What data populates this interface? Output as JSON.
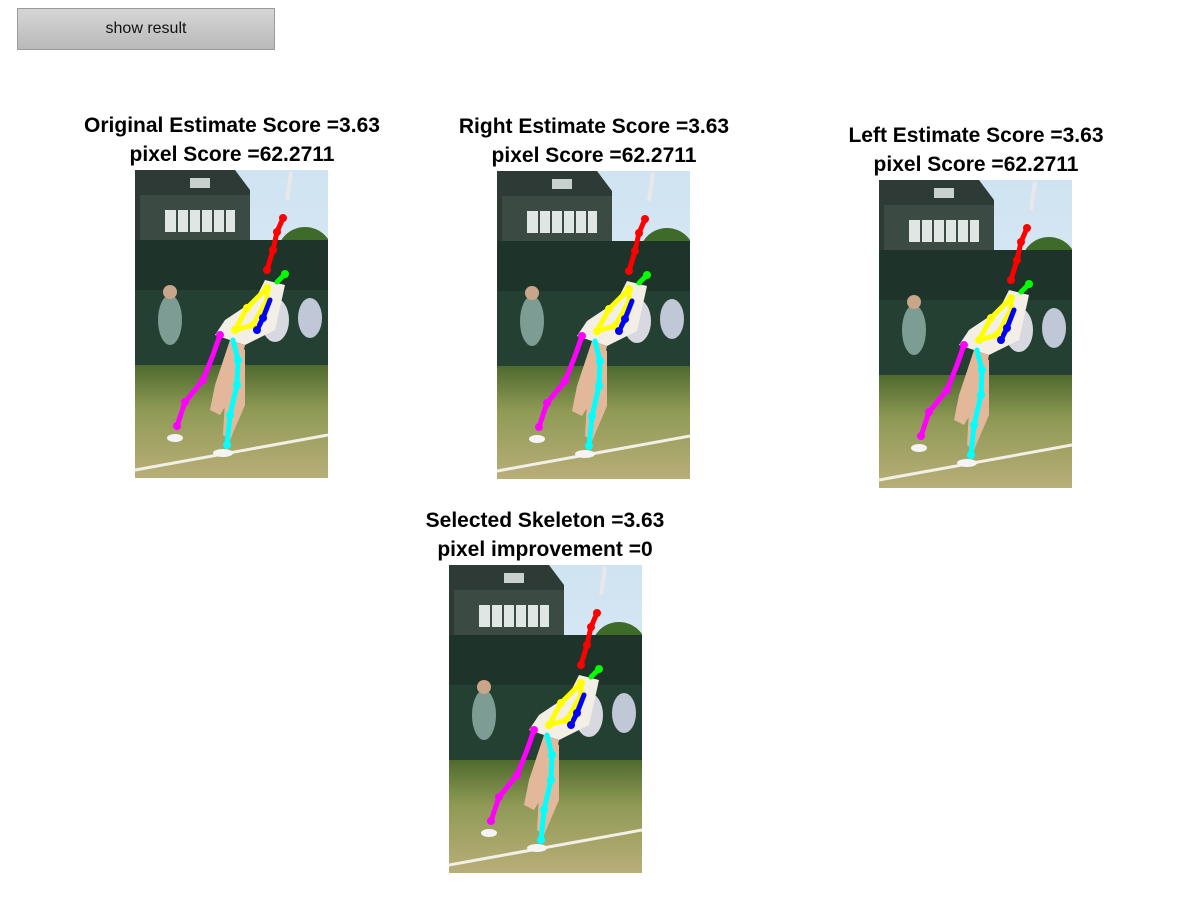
{
  "button": {
    "label": "show result"
  },
  "panels": [
    {
      "line1": "Original Estimate Score =3.63",
      "line2": "pixel Score =62.2711"
    },
    {
      "line1": "Right Estimate Score =3.63",
      "line2": "pixel Score =62.2711"
    },
    {
      "line1": "Left Estimate Score =3.63",
      "line2": "pixel Score =62.2711"
    },
    {
      "line1": "Selected Skeleton =3.63",
      "line2": "pixel improvement =0"
    }
  ],
  "colors": {
    "head": "#00ff00",
    "right_arm": "#ff0000",
    "torso": "#ffff00",
    "left_arm": "#0000ff",
    "right_leg": "#ff00ff",
    "left_leg": "#00ffff"
  }
}
